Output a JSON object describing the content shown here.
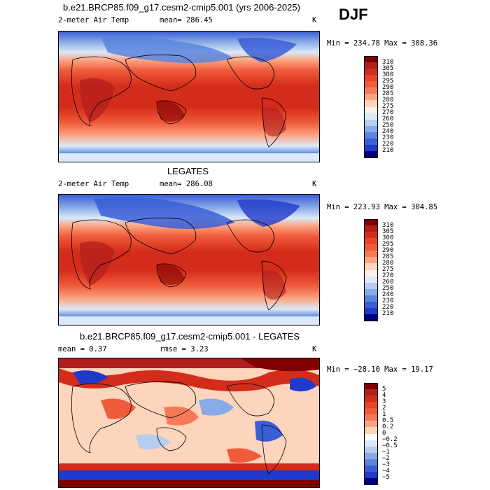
{
  "season": "DJF",
  "panels": [
    {
      "title": "b.e21.BRCP85.f09_g17.cesm2-cmip5.001 (yrs 2006-2025)",
      "left_label": "2-meter Air Temp",
      "center_label": "mean= 286.45",
      "units": "K",
      "minmax": "Min = 234.78 Max = 308.36",
      "levels": [
        "310",
        "305",
        "300",
        "295",
        "290",
        "285",
        "280",
        "275",
        "270",
        "260",
        "250",
        "240",
        "230",
        "220",
        "210"
      ],
      "colors": [
        "#800000",
        "#b01e1e",
        "#d42c1a",
        "#e8432a",
        "#f05b3a",
        "#f77a58",
        "#fba583",
        "#fdd4bc",
        "#fff0e6",
        "#dbe9f8",
        "#b5cdef",
        "#88aae6",
        "#5a85dd",
        "#3a5ed6",
        "#1f3acb",
        "#000080"
      ]
    },
    {
      "title": "LEGATES",
      "left_label": "2-meter Air Temp",
      "center_label": "mean= 286.08",
      "units": "K",
      "minmax": "Min = 223.93 Max = 304.85",
      "levels": [
        "310",
        "305",
        "300",
        "295",
        "290",
        "285",
        "280",
        "275",
        "270",
        "260",
        "250",
        "240",
        "230",
        "220",
        "210"
      ],
      "colors": [
        "#800000",
        "#b01e1e",
        "#d42c1a",
        "#e8432a",
        "#f05b3a",
        "#f77a58",
        "#fba583",
        "#fdd4bc",
        "#fff0e6",
        "#dbe9f8",
        "#b5cdef",
        "#88aae6",
        "#5a85dd",
        "#3a5ed6",
        "#1f3acb",
        "#000080"
      ]
    },
    {
      "title": "b.e21.BRCP85.f09_g17.cesm2-cmip5.001 - LEGATES",
      "left_label": "mean =   0.37",
      "center_label": "rmse =   3.23",
      "units": "K",
      "minmax": "Min = −28.10 Max =  19.17",
      "levels": [
        "5",
        "4",
        "3",
        "2",
        "1",
        "0.5",
        "0.2",
        "0",
        "−0.2",
        "−0.5",
        "−1",
        "−2",
        "−3",
        "−4",
        "−5"
      ],
      "colors": [
        "#800000",
        "#b01e1e",
        "#d42c1a",
        "#e8432a",
        "#f05b3a",
        "#f77a58",
        "#fba583",
        "#fdd4bc",
        "#ffffff",
        "#dbe9f8",
        "#b5cdef",
        "#88aae6",
        "#5a85dd",
        "#3a5ed6",
        "#1f3acb",
        "#000080"
      ]
    }
  ]
}
